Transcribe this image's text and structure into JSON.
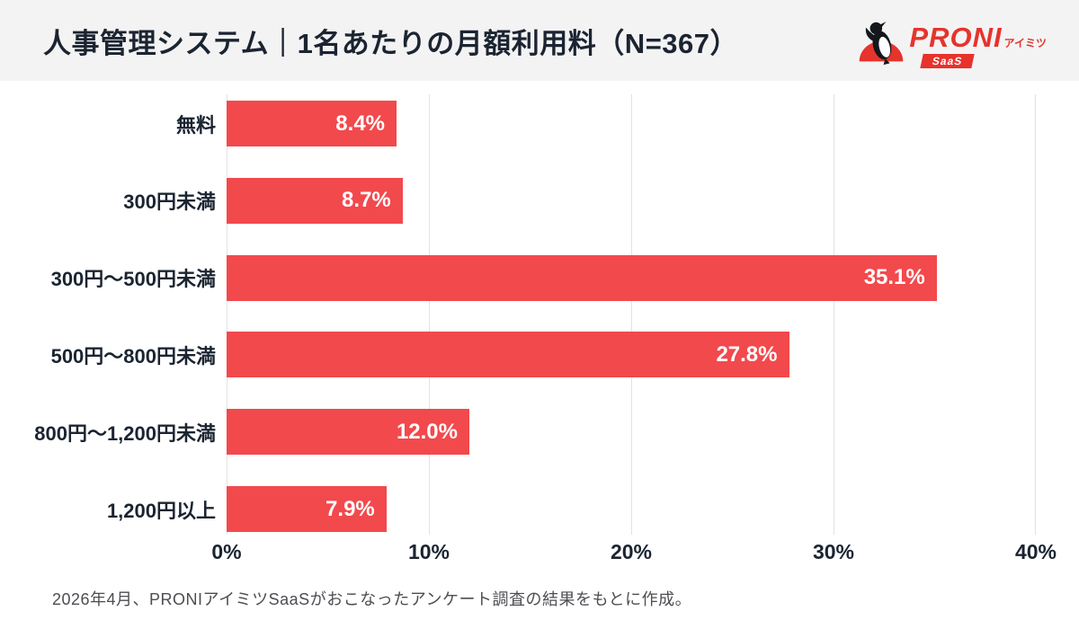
{
  "header": {
    "title": "人事管理システム｜1名あたりの月額利用料（N=367）",
    "logo": {
      "brand": "PRONI",
      "sub": "アイミツ",
      "badge": "SaaS"
    }
  },
  "chart_data": {
    "type": "bar",
    "orientation": "horizontal",
    "title": "人事管理システム｜1名あたりの月額利用料（N=367）",
    "categories": [
      "無料",
      "300円未満",
      "300円〜500円未満",
      "500円〜800円未満",
      "800円〜1,200円未満",
      "1,200円以上"
    ],
    "values": [
      8.4,
      8.7,
      35.1,
      27.8,
      12.0,
      7.9
    ],
    "value_labels": [
      "8.4%",
      "8.7%",
      "35.1%",
      "27.8%",
      "12.0%",
      "7.9%"
    ],
    "xlim": [
      0,
      40
    ],
    "x_ticks": [
      "0%",
      "10%",
      "20%",
      "30%",
      "40%"
    ],
    "x_tick_values": [
      0,
      10,
      20,
      30,
      40
    ],
    "grid": true,
    "legend": "none",
    "bar_color": "#f2494d",
    "value_label_color": "#ffffff"
  },
  "footer": {
    "note": "2026年4月、PRONIアイミツSaaSがおこなったアンケート調査の結果をもとに作成。"
  },
  "colors": {
    "accent_red": "#f2494d",
    "logo_red": "#e6332c",
    "header_bg": "#f3f3f4",
    "text_dark": "#1b2431",
    "grid": "#e2e2e4",
    "footer_text": "#4d4d52"
  }
}
